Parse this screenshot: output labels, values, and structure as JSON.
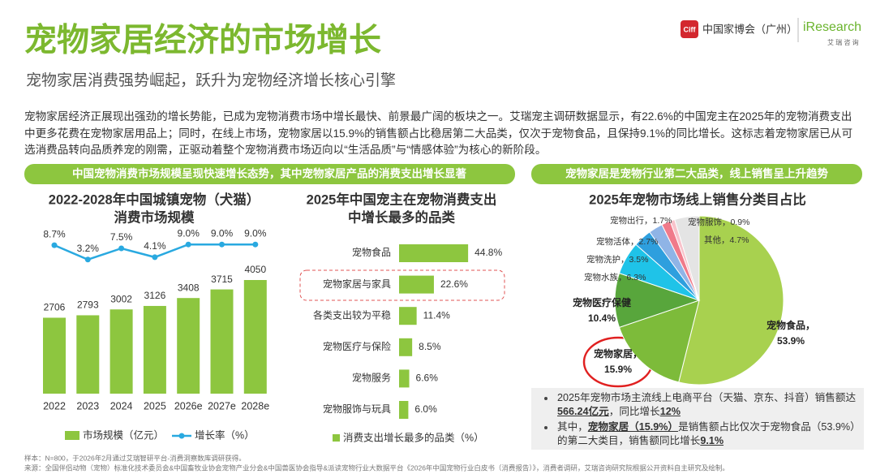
{
  "header": {
    "title": "宠物家居经济的市场增长",
    "subtitle": "宠物家居消费强势崛起，跃升为宠物经济增长核心引擎",
    "logo_ciff": "Ciff",
    "logo_fair": "中国家博会（广州）",
    "logo_iresearch": "iResearch",
    "logo_iresearch_cn": "艾 瑞 咨 询"
  },
  "intro": "宠物家居经济正展现出强劲的增长势能，已成为宠物消费市场中增长最快、前景最广阔的板块之一。艾瑞宠主调研数据显示，有22.6%的中国宠主在2025年的宠物消费支出中更多花费在宠物家居用品上；同时，在线上市场，宠物家居以15.9%的销售额占比稳居第二大品类，仅次于宠物食品，且保持9.1%的同比增长。这标志着宠物家居已从可选消费品转向品质养宠的刚需，正驱动着整个宠物消费市场迈向以“生活品质”与“情感体验”为核心的新阶段。",
  "banners": [
    "中国宠物消费市场规模呈现快速增长态势，其中宠物家居产品的消费支出增长显著",
    "宠物家居是宠物行业第二大品类，线上销售呈上升趋势"
  ],
  "chart_data": [
    {
      "type": "bar",
      "title": [
        "2022-2028年中国城镇宠物（犬猫）",
        "消费市场规模"
      ],
      "categories": [
        "2022",
        "2023",
        "2024",
        "2025",
        "2026e",
        "2027e",
        "2028e"
      ],
      "series": [
        {
          "name": "市场规模（亿元）",
          "color": "#8dc63f",
          "values": [
            2706,
            2793,
            3002,
            3126,
            3408,
            3715,
            4050
          ]
        },
        {
          "name": "增长率（%）",
          "type": "line",
          "axis": "y2",
          "color": "#29a9e0",
          "values": [
            8.7,
            3.2,
            7.5,
            4.1,
            9.0,
            9.0,
            9.0
          ],
          "value_labels": [
            "8.7%",
            "3.2%",
            "7.5%",
            "4.1%",
            "9.0%",
            "9.0%",
            "9.0%"
          ]
        }
      ]
    },
    {
      "type": "hbar",
      "title": [
        "2025年中国宠主在宠物消费支出",
        "中增长最多的品类"
      ],
      "categories": [
        "宠物食品",
        "宠物家居与家具",
        "各类支出较为平稳",
        "宠物医疗与保险",
        "宠物服务",
        "宠物服饰与玩具"
      ],
      "series": [
        {
          "name": "消费支出增长最多的品类（%）",
          "color": "#8dc63f",
          "values": [
            44.8,
            22.6,
            11.4,
            8.5,
            6.6,
            6.0
          ],
          "value_labels": [
            "44.8%",
            "22.6%",
            "11.4%",
            "8.5%",
            "6.6%",
            "6.0%"
          ]
        }
      ],
      "highlight_index": 1
    },
    {
      "type": "pie",
      "title": [
        "2025年宠物市场线上销售分类目占比"
      ],
      "categories": [
        "宠物食品，",
        "宠物家居，",
        "宠物医疗保健",
        "宠物水族，",
        "宠物洗护，",
        "宠物活体，",
        "宠物出行，",
        "宠物服饰，",
        "其他，"
      ],
      "values": [
        53.9,
        15.9,
        10.4,
        6.3,
        3.5,
        2.7,
        1.7,
        0.9,
        4.7
      ],
      "value_labels": [
        "53.9%",
        "15.9%",
        "10.4%",
        "6.3%",
        "3.5%",
        "2.7%",
        "1.7%",
        "0.9%",
        "4.7%"
      ],
      "colors": [
        "#a8d14f",
        "#7dbb3a",
        "#58a63c",
        "#1fc3e8",
        "#2e9fde",
        "#8fb4e6",
        "#f07a8a",
        "#f8c3cb",
        "#e4e4e4"
      ],
      "highlight_index": 1
    }
  ],
  "notes": [
    [
      {
        "text": "2025年宠物市场主流线上电商平台（天猫、京东、抖音）销售额达",
        "bold": false
      },
      {
        "text": "566.24亿元",
        "bold": true
      },
      {
        "text": "，同比增长",
        "bold": false
      },
      {
        "text": "12%",
        "bold": true
      }
    ],
    [
      {
        "text": "其中，",
        "bold": false
      },
      {
        "text": "宠物家居（15.9%）",
        "bold": true
      },
      {
        "text": "是销售额占比仅次于宠物食品（53.9%）的第二大类目，销售额同比增长",
        "bold": false
      },
      {
        "text": "9.1%",
        "bold": true
      }
    ]
  ],
  "footer": [
    "样本：N=800，于2026年2月通过艾瑞智研平台-消费洞察数库调研获得。",
    "来源：全国伴侣动物（宠物）标准化技术委员会&中国畜牧业协会宠物产业分会&中国兽医协会指导&派读宠物行业大数据平台《2026年中国宠物行业白皮书（消费报告）》，消费者调研，艾瑞咨询研究院根据公开资料自主研究及绘制。"
  ]
}
